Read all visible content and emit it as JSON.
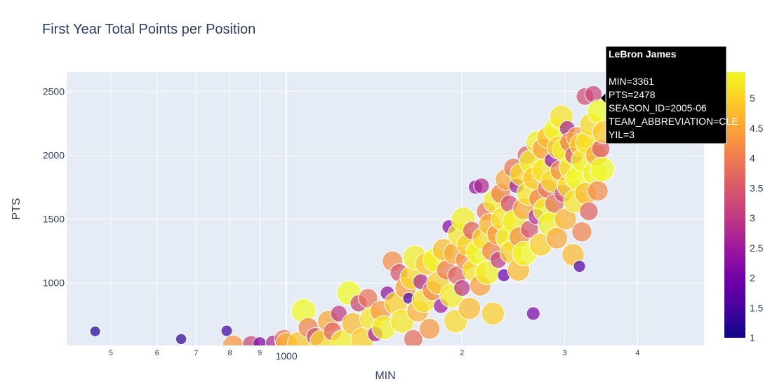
{
  "chart_data": {
    "type": "scatter",
    "title": "First Year Total Points per Position",
    "xlabel": "MIN",
    "ylabel": "PTS",
    "xscale": "log",
    "xlim": [
      420,
      5200
    ],
    "ylim": [
      510,
      2650
    ],
    "grid": true,
    "x_major_ticks": [
      {
        "value": 1000,
        "label": "1000"
      }
    ],
    "x_minor_ticks": [
      {
        "value": 500,
        "label": "5"
      },
      {
        "value": 600,
        "label": "6"
      },
      {
        "value": 700,
        "label": "7"
      },
      {
        "value": 800,
        "label": "8"
      },
      {
        "value": 900,
        "label": "9"
      },
      {
        "value": 2000,
        "label": "2"
      },
      {
        "value": 3000,
        "label": "3"
      },
      {
        "value": 4000,
        "label": "4"
      }
    ],
    "y_ticks": [
      1000,
      1500,
      2000,
      2500
    ],
    "colorbar": {
      "variable": "YIL",
      "range": [
        1,
        5
      ],
      "ticks": [
        "1",
        "1.5",
        "2",
        "2.5",
        "3",
        "3.5",
        "4",
        "4.5",
        "5"
      ],
      "colorscale": [
        "#0d0887",
        "#46039f",
        "#7201a8",
        "#9c179e",
        "#bd3786",
        "#d8576b",
        "#ed7953",
        "#fb9f3a",
        "#fdca26",
        "#f0f921"
      ]
    },
    "points": [
      [
        470,
        620,
        1.2
      ],
      [
        660,
        560,
        1.3
      ],
      [
        790,
        625,
        1.4
      ],
      [
        810,
        510,
        4.0
      ],
      [
        870,
        520,
        3.0
      ],
      [
        900,
        525,
        2.0
      ],
      [
        950,
        530,
        2.6
      ],
      [
        990,
        560,
        3.6
      ],
      [
        1000,
        525,
        4.3
      ],
      [
        1050,
        530,
        4.5
      ],
      [
        1070,
        780,
        5.0
      ],
      [
        1090,
        650,
        3.8
      ],
      [
        1120,
        580,
        3.2
      ],
      [
        1150,
        540,
        4.7
      ],
      [
        1180,
        700,
        4.2
      ],
      [
        1200,
        620,
        3.4
      ],
      [
        1230,
        760,
        2.8
      ],
      [
        1250,
        540,
        4.9
      ],
      [
        1280,
        920,
        5.0
      ],
      [
        1300,
        680,
        4.4
      ],
      [
        1330,
        840,
        3.0
      ],
      [
        1350,
        560,
        4.6
      ],
      [
        1380,
        880,
        3.6
      ],
      [
        1400,
        720,
        4.8
      ],
      [
        1420,
        600,
        2.5
      ],
      [
        1450,
        780,
        4.0
      ],
      [
        1470,
        650,
        4.9
      ],
      [
        1490,
        920,
        2.2
      ],
      [
        1520,
        1170,
        3.9
      ],
      [
        1540,
        840,
        4.6
      ],
      [
        1560,
        1080,
        3.2
      ],
      [
        1580,
        700,
        4.8
      ],
      [
        1600,
        960,
        4.1
      ],
      [
        1620,
        880,
        1.5
      ],
      [
        1640,
        1040,
        4.7
      ],
      [
        1650,
        560,
        3.5
      ],
      [
        1660,
        1200,
        4.9
      ],
      [
        1680,
        780,
        4.3
      ],
      [
        1700,
        1010,
        2.6
      ],
      [
        1720,
        860,
        4.8
      ],
      [
        1740,
        1150,
        4.5
      ],
      [
        1760,
        640,
        4.0
      ],
      [
        1780,
        940,
        3.8
      ],
      [
        1800,
        1180,
        5.0
      ],
      [
        1820,
        1000,
        4.6
      ],
      [
        1840,
        820,
        2.4
      ],
      [
        1860,
        1260,
        4.4
      ],
      [
        1880,
        1100,
        3.7
      ],
      [
        1900,
        1440,
        2.1
      ],
      [
        1920,
        900,
        4.9
      ],
      [
        1940,
        1230,
        4.2
      ],
      [
        1950,
        700,
        4.7
      ],
      [
        1960,
        1060,
        3.4
      ],
      [
        1980,
        1380,
        4.8
      ],
      [
        2000,
        960,
        2.8
      ],
      [
        2010,
        1500,
        4.9
      ],
      [
        2030,
        1180,
        3.9
      ],
      [
        2050,
        1300,
        4.6
      ],
      [
        2060,
        800,
        4.4
      ],
      [
        2080,
        1410,
        3.3
      ],
      [
        2100,
        1100,
        4.8
      ],
      [
        2110,
        1750,
        2.2
      ],
      [
        2130,
        1240,
        5.0
      ],
      [
        2150,
        980,
        4.1
      ],
      [
        2160,
        1760,
        2.6
      ],
      [
        2180,
        1350,
        4.7
      ],
      [
        2200,
        1560,
        3.6
      ],
      [
        2210,
        1080,
        4.9
      ],
      [
        2230,
        1460,
        4.3
      ],
      [
        2250,
        1250,
        3.8
      ],
      [
        2260,
        760,
        4.6
      ],
      [
        2280,
        1640,
        4.9
      ],
      [
        2300,
        1380,
        4.0
      ],
      [
        2310,
        1180,
        2.9
      ],
      [
        2330,
        1700,
        3.7
      ],
      [
        2350,
        1500,
        4.8
      ],
      [
        2360,
        1060,
        1.8
      ],
      [
        2380,
        1810,
        4.2
      ],
      [
        2400,
        1350,
        5.0
      ],
      [
        2410,
        1620,
        3.1
      ],
      [
        2430,
        1240,
        4.6
      ],
      [
        2450,
        1900,
        3.6
      ],
      [
        2460,
        1480,
        4.9
      ],
      [
        2480,
        1760,
        2.4
      ],
      [
        2500,
        1100,
        4.4
      ],
      [
        2510,
        1360,
        3.9
      ],
      [
        2530,
        1850,
        4.7
      ],
      [
        2550,
        1580,
        4.2
      ],
      [
        2560,
        1230,
        5.0
      ],
      [
        2580,
        2000,
        3.4
      ],
      [
        2600,
        1700,
        4.8
      ],
      [
        2610,
        1420,
        3.2
      ],
      [
        2630,
        1950,
        4.9
      ],
      [
        2650,
        760,
        2.0
      ],
      [
        2660,
        1820,
        4.5
      ],
      [
        2680,
        1520,
        2.7
      ],
      [
        2700,
        2100,
        4.9
      ],
      [
        2710,
        1660,
        3.8
      ],
      [
        2730,
        1300,
        4.6
      ],
      [
        2750,
        2050,
        4.1
      ],
      [
        2760,
        1880,
        4.8
      ],
      [
        2780,
        1570,
        5.0
      ],
      [
        2800,
        1740,
        3.6
      ],
      [
        2810,
        2140,
        4.4
      ],
      [
        2830,
        1460,
        4.9
      ],
      [
        2850,
        1960,
        2.3
      ],
      [
        2860,
        1800,
        4.7
      ],
      [
        2880,
        1620,
        3.5
      ],
      [
        2900,
        2200,
        5.0
      ],
      [
        2910,
        1350,
        4.2
      ],
      [
        2930,
        2060,
        4.6
      ],
      [
        2950,
        1880,
        3.9
      ],
      [
        2960,
        2300,
        4.8
      ],
      [
        2980,
        1700,
        3.1
      ],
      [
        3000,
        2040,
        4.9
      ],
      [
        3010,
        1500,
        4.3
      ],
      [
        3030,
        2210,
        2.5
      ],
      [
        3050,
        1760,
        4.7
      ],
      [
        3060,
        2100,
        3.7
      ],
      [
        3080,
        1900,
        4.9
      ],
      [
        3100,
        1220,
        4.4
      ],
      [
        3110,
        2000,
        3.2
      ],
      [
        3130,
        1640,
        4.8
      ],
      [
        3150,
        2140,
        4.1
      ],
      [
        3160,
        1820,
        5.0
      ],
      [
        3180,
        1130,
        1.6
      ],
      [
        3200,
        2080,
        4.6
      ],
      [
        3210,
        1400,
        3.8
      ],
      [
        3230,
        1960,
        4.9
      ],
      [
        3250,
        2460,
        3.1
      ],
      [
        3260,
        1700,
        4.4
      ],
      [
        3280,
        2100,
        4.8
      ],
      [
        3300,
        1560,
        3.4
      ],
      [
        3330,
        2240,
        4.7
      ],
      [
        3361,
        2478,
        3.0
      ],
      [
        3380,
        1860,
        4.9
      ],
      [
        3400,
        2000,
        4.2
      ],
      [
        3420,
        1720,
        3.9
      ],
      [
        3440,
        2340,
        5.0
      ],
      [
        3460,
        2050,
        3.3
      ],
      [
        3480,
        1890,
        5.0
      ],
      [
        3500,
        2180,
        4.5
      ]
    ]
  },
  "tooltip": {
    "title": "LeBron James",
    "lines": [
      "MIN=3361",
      "PTS=2478",
      "SEASON_ID=2005-06",
      "TEAM_ABBREVIATION=CLE",
      "YIL=3"
    ]
  }
}
